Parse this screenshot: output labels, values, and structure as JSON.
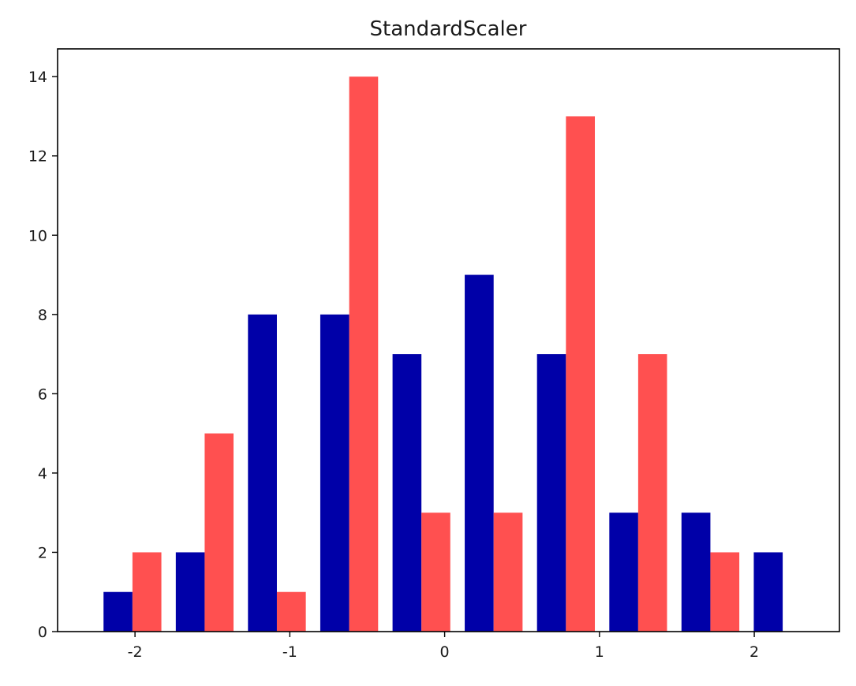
{
  "chart_data": {
    "type": "bar",
    "title": "StandardScaler",
    "xlabel": "",
    "ylabel": "",
    "xlim": [
      -2.5,
      2.55
    ],
    "ylim": [
      0,
      14.7
    ],
    "xticks": [
      "-2",
      "-1",
      "0",
      "1",
      "2"
    ],
    "yticks": [
      "0",
      "2",
      "4",
      "6",
      "8",
      "10",
      "12",
      "14"
    ],
    "grid": false,
    "bin_edges": [
      -2.25,
      -1.783,
      -1.317,
      -0.85,
      -0.383,
      0.083,
      0.55,
      1.017,
      1.483,
      1.95,
      2.417
    ],
    "series": [
      {
        "values": [
          1,
          2,
          8,
          8,
          7,
          9,
          7,
          3,
          3,
          2
        ],
        "color": "#0000a8"
      },
      {
        "values": [
          2,
          5,
          1,
          14,
          3,
          3,
          13,
          7,
          2,
          0
        ],
        "color": "#ff5050"
      }
    ]
  }
}
